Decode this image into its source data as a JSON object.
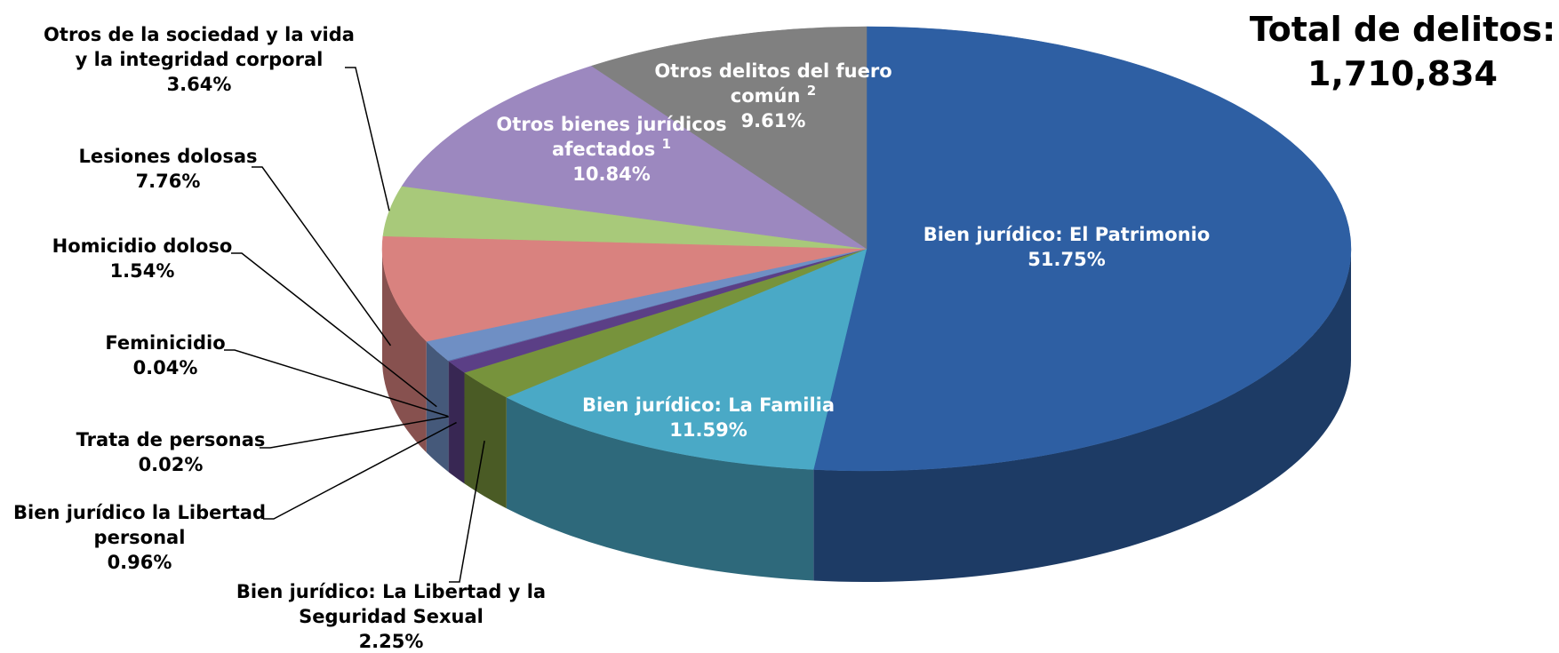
{
  "chart_data": {
    "type": "pie3d",
    "title": "Total de delitos:",
    "subtitle": "1,710,834",
    "categories": [
      "Bien jurídico: El Patrimonio",
      "Bien jurídico: La Familia",
      "Bien jurídico: La Libertad y la Seguridad Sexual",
      "Bien jurídico la Libertad personal",
      "Trata de personas",
      "Feminicidio",
      "Homicidio doloso",
      "Lesiones dolosas",
      "Otros de la sociedad y la vida y la integridad corporal",
      "Otros bienes jurídicos afectados",
      "Otros delitos del fuero común"
    ],
    "footnotes": {
      "9": "1",
      "10": "2"
    },
    "values": [
      51.75,
      11.59,
      2.25,
      0.96,
      0.02,
      0.04,
      1.54,
      7.76,
      3.64,
      10.84,
      9.61
    ],
    "value_labels": [
      "51.75%",
      "11.59%",
      "2.25%",
      "0.96%",
      "0.02%",
      "0.04%",
      "1.54%",
      "7.76%",
      "3.64%",
      "10.84%",
      "9.61%"
    ],
    "colors": [
      "#2e5fa3",
      "#4aa9c6",
      "#77933c",
      "#5b3f86",
      "#8064a2",
      "#4f6fa8",
      "#6f8fc4",
      "#d9827f",
      "#a8c97a",
      "#9c88bf",
      "#808080"
    ]
  }
}
